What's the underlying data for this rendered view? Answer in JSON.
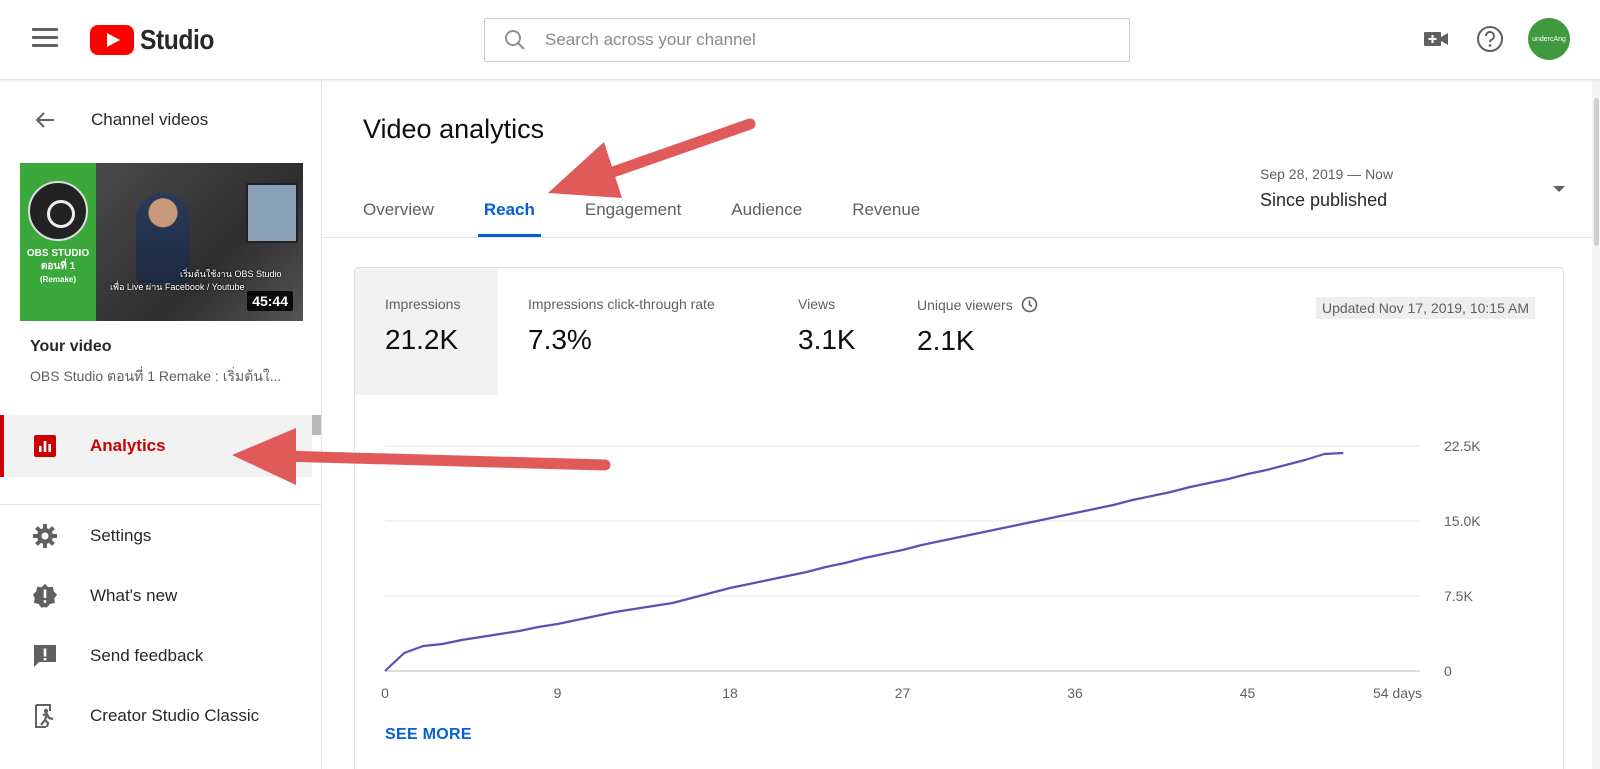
{
  "header": {
    "logo_text": "Studio",
    "search_placeholder": "Search across your channel",
    "avatar_text": "undercAng"
  },
  "sidebar": {
    "back_label": "Channel videos",
    "thumbnail": {
      "green_text_1": "OBS STUDIO",
      "green_text_2": "ตอนที่ 1",
      "green_text_3": "(Remake)",
      "caption_1": "เริ่มต้นใช้งาน OBS Studio",
      "caption_2": "เพื่อ Live ผ่าน Facebook / Youtube",
      "duration": "45:44"
    },
    "your_video_label": "Your video",
    "video_title": "OBS Studio ตอนที่ 1 Remake : เริ่มต้นใ...",
    "active_item": "Analytics",
    "items": [
      {
        "label": "Settings",
        "icon": "gear-icon"
      },
      {
        "label": "What's new",
        "icon": "alert-badge-icon"
      },
      {
        "label": "Send feedback",
        "icon": "feedback-icon"
      },
      {
        "label": "Creator Studio Classic",
        "icon": "exit-icon"
      }
    ]
  },
  "main": {
    "page_title": "Video analytics",
    "tabs": [
      "Overview",
      "Reach",
      "Engagement",
      "Audience",
      "Revenue"
    ],
    "active_tab": "Reach",
    "date_range": {
      "small": "Sep 28, 2019 — Now",
      "main": "Since published"
    },
    "metrics": [
      {
        "label": "Impressions",
        "value": "21.2K"
      },
      {
        "label": "Impressions click-through rate",
        "value": "7.3%"
      },
      {
        "label": "Views",
        "value": "3.1K"
      },
      {
        "label": "Unique viewers",
        "value": "2.1K"
      }
    ],
    "updated": "Updated Nov 17, 2019, 10:15 AM",
    "see_more": "SEE MORE"
  },
  "colors": {
    "accent_blue": "#065fd4",
    "active_red": "#cc0000",
    "line_color": "#5b4fb8",
    "annotation_red": "#e05a5a"
  },
  "chart_data": {
    "type": "line",
    "xlabel": "",
    "ylabel": "",
    "x_tick_labels": [
      "0",
      "9",
      "18",
      "27",
      "36",
      "45",
      "54 days"
    ],
    "y_tick_labels": [
      "0",
      "7.5K",
      "15.0K",
      "22.5K"
    ],
    "xlim": [
      0,
      54
    ],
    "ylim": [
      0,
      22500
    ],
    "grid": true,
    "series": [
      {
        "x": [
          0,
          1,
          2,
          3,
          4,
          5,
          6,
          7,
          8,
          9,
          10,
          11,
          12,
          13,
          14,
          15,
          16,
          17,
          18,
          19,
          20,
          21,
          22,
          23,
          24,
          25,
          26,
          27,
          28,
          29,
          30,
          31,
          32,
          33,
          34,
          35,
          36,
          37,
          38,
          39,
          40,
          41,
          42,
          43,
          44,
          45,
          46,
          47,
          48,
          49,
          50
        ],
        "y": [
          0,
          1800,
          2500,
          2700,
          3100,
          3400,
          3700,
          4000,
          4400,
          4700,
          5100,
          5500,
          5900,
          6200,
          6500,
          6800,
          7300,
          7800,
          8300,
          8700,
          9100,
          9500,
          9900,
          10400,
          10800,
          11300,
          11700,
          12100,
          12600,
          13000,
          13400,
          13800,
          14200,
          14600,
          15000,
          15400,
          15800,
          16200,
          16600,
          17100,
          17500,
          17900,
          18400,
          18800,
          19200,
          19700,
          20100,
          20600,
          21100,
          21700,
          21800
        ]
      }
    ]
  }
}
